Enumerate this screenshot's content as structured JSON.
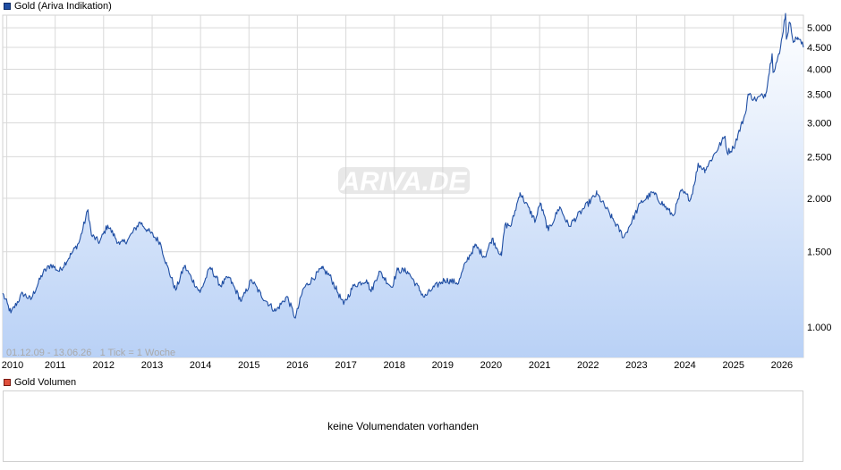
{
  "price_legend": {
    "label": "Gold (Ariva Indikation)",
    "color": "#1f4ea3"
  },
  "volume_legend": {
    "label": "Gold Volumen",
    "color": "#e0503c"
  },
  "range_text": "01.12.09 - 13.06.26   1 Tick = 1 Woche",
  "watermark": "ARIVA.DE",
  "volume_panel": {
    "message": "keine Volumendaten vorhanden"
  },
  "chart_data": {
    "type": "area",
    "scale": "log",
    "y_ticks": [
      {
        "value": 1000,
        "label": "1.000"
      },
      {
        "value": 1500,
        "label": "1.500"
      },
      {
        "value": 2000,
        "label": "2.000"
      },
      {
        "value": 2500,
        "label": "2.500"
      },
      {
        "value": 3000,
        "label": "3.000"
      },
      {
        "value": 3500,
        "label": "3.500"
      },
      {
        "value": 4000,
        "label": "4.000"
      },
      {
        "value": 4500,
        "label": "4.500"
      },
      {
        "value": 5000,
        "label": "5.000"
      }
    ],
    "x_ticks": [
      "2010",
      "2011",
      "2012",
      "2013",
      "2014",
      "2015",
      "2016",
      "2017",
      "2018",
      "2019",
      "2020",
      "2021",
      "2022",
      "2023",
      "2024",
      "2025",
      "2026"
    ],
    "x_range": [
      "2009-12-01",
      "2026-06-13"
    ],
    "ylim": [
      850,
      5350
    ],
    "grid": true,
    "line_color": "#1f4ea3",
    "series": [
      {
        "name": "Gold (Ariva Indikation)",
        "points": [
          [
            "2009-12-01",
            1200
          ],
          [
            "2010-02-01",
            1080
          ],
          [
            "2010-05-01",
            1200
          ],
          [
            "2010-07-01",
            1160
          ],
          [
            "2010-10-01",
            1340
          ],
          [
            "2010-12-01",
            1400
          ],
          [
            "2011-02-01",
            1350
          ],
          [
            "2011-05-01",
            1480
          ],
          [
            "2011-07-01",
            1580
          ],
          [
            "2011-09-05",
            1880
          ],
          [
            "2011-10-01",
            1640
          ],
          [
            "2011-12-01",
            1580
          ],
          [
            "2012-02-01",
            1730
          ],
          [
            "2012-05-01",
            1560
          ],
          [
            "2012-07-01",
            1600
          ],
          [
            "2012-10-01",
            1760
          ],
          [
            "2012-12-01",
            1680
          ],
          [
            "2013-03-01",
            1580
          ],
          [
            "2013-04-20",
            1400
          ],
          [
            "2013-06-28",
            1220
          ],
          [
            "2013-09-01",
            1390
          ],
          [
            "2013-12-28",
            1205
          ],
          [
            "2014-03-15",
            1380
          ],
          [
            "2014-06-01",
            1250
          ],
          [
            "2014-08-01",
            1310
          ],
          [
            "2014-11-05",
            1150
          ],
          [
            "2015-01-20",
            1290
          ],
          [
            "2015-04-01",
            1190
          ],
          [
            "2015-07-20",
            1090
          ],
          [
            "2015-10-15",
            1180
          ],
          [
            "2015-12-17",
            1050
          ],
          [
            "2016-02-15",
            1230
          ],
          [
            "2016-07-05",
            1370
          ],
          [
            "2016-09-01",
            1320
          ],
          [
            "2016-12-15",
            1130
          ],
          [
            "2017-03-01",
            1250
          ],
          [
            "2017-06-06",
            1290
          ],
          [
            "2017-07-10",
            1210
          ],
          [
            "2017-09-08",
            1350
          ],
          [
            "2017-12-12",
            1240
          ],
          [
            "2018-01-25",
            1360
          ],
          [
            "2018-04-11",
            1350
          ],
          [
            "2018-08-16",
            1175
          ],
          [
            "2018-10-15",
            1230
          ],
          [
            "2019-01-15",
            1290
          ],
          [
            "2019-05-01",
            1270
          ],
          [
            "2019-06-25",
            1420
          ],
          [
            "2019-09-04",
            1550
          ],
          [
            "2019-11-15",
            1460
          ],
          [
            "2020-01-08",
            1610
          ],
          [
            "2020-03-19",
            1470
          ],
          [
            "2020-04-14",
            1730
          ],
          [
            "2020-06-01",
            1730
          ],
          [
            "2020-08-06",
            2060
          ],
          [
            "2020-11-30",
            1770
          ],
          [
            "2021-01-05",
            1950
          ],
          [
            "2021-03-08",
            1680
          ],
          [
            "2021-06-01",
            1910
          ],
          [
            "2021-08-09",
            1720
          ],
          [
            "2021-11-15",
            1870
          ],
          [
            "2022-03-08",
            2050
          ],
          [
            "2022-07-01",
            1800
          ],
          [
            "2022-09-28",
            1620
          ],
          [
            "2023-02-01",
            1950
          ],
          [
            "2023-05-04",
            2060
          ],
          [
            "2023-10-05",
            1820
          ],
          [
            "2023-12-04",
            2080
          ],
          [
            "2024-02-14",
            1990
          ],
          [
            "2024-04-12",
            2400
          ],
          [
            "2024-06-01",
            2330
          ],
          [
            "2024-10-30",
            2790
          ],
          [
            "2024-11-14",
            2560
          ],
          [
            "2025-01-01",
            2620
          ],
          [
            "2025-04-01",
            3150
          ],
          [
            "2025-04-22",
            3500
          ],
          [
            "2025-06-15",
            3400
          ],
          [
            "2025-09-01",
            3500
          ],
          [
            "2025-10-20",
            4350
          ],
          [
            "2025-10-28",
            3950
          ],
          [
            "2025-12-15",
            4350
          ],
          [
            "2026-01-29",
            5400
          ],
          [
            "2026-02-05",
            4700
          ],
          [
            "2026-03-01",
            5150
          ],
          [
            "2026-04-01",
            4650
          ],
          [
            "2026-05-01",
            4750
          ],
          [
            "2026-06-13",
            4520
          ]
        ]
      }
    ]
  }
}
